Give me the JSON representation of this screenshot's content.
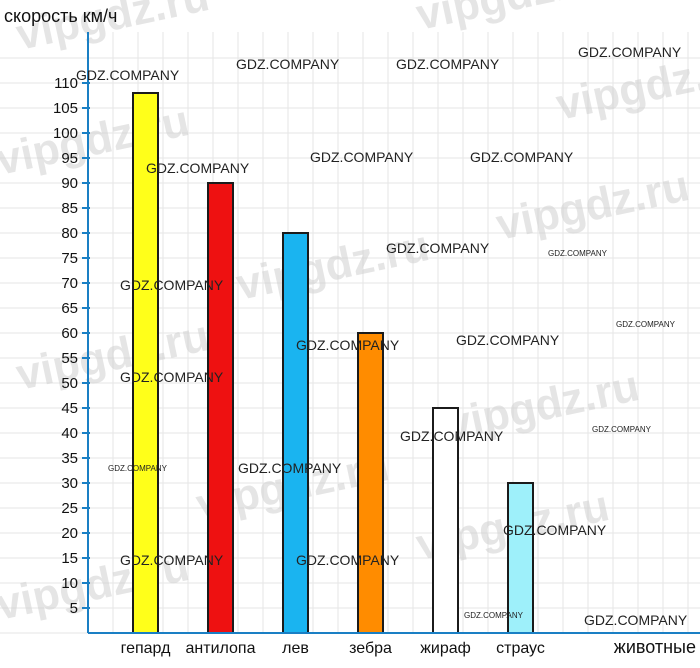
{
  "chart_data": {
    "type": "bar",
    "ylabel": "скорость км/ч",
    "xlabel": "животные",
    "ylim": [
      0,
      110
    ],
    "yticks": [
      5,
      10,
      15,
      20,
      25,
      30,
      35,
      40,
      45,
      50,
      55,
      60,
      65,
      70,
      75,
      80,
      85,
      90,
      95,
      100,
      105,
      110
    ],
    "categories": [
      "гепард",
      "антилопа",
      "лев",
      "зебра",
      "жираф",
      "страус"
    ],
    "values": [
      108,
      90,
      80,
      60,
      45,
      30
    ],
    "colors": [
      "#ffff1a",
      "#ee1111",
      "#1ab4f0",
      "#ff8c00",
      "#ffffff",
      "#9ef0fa"
    ],
    "grid": true,
    "legend": "none"
  },
  "watermarks": {
    "site": "vipgdz.ru",
    "company": "GDZ.COMPANY"
  }
}
